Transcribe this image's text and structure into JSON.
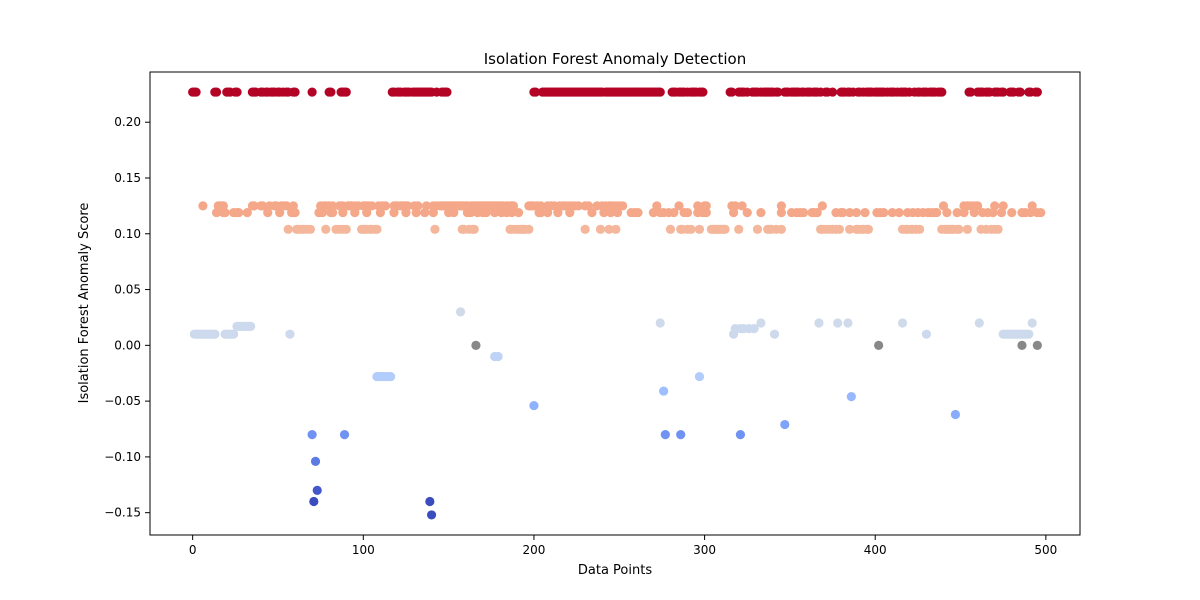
{
  "chart_data": {
    "type": "scatter",
    "title": "Isolation Forest Anomaly Detection",
    "xlabel": "Data Points",
    "ylabel": "Isolation Forest Anomaly Score",
    "xlim": [
      -25,
      520
    ],
    "ylim": [
      -0.17,
      0.245
    ],
    "xticks": [
      0,
      100,
      200,
      300,
      400,
      500
    ],
    "xtick_labels": [
      "0",
      "100",
      "200",
      "300",
      "400",
      "500"
    ],
    "yticks": [
      -0.15,
      -0.1,
      -0.05,
      0.0,
      0.05,
      0.1,
      0.15,
      0.2
    ],
    "ytick_labels": [
      "−0.15",
      "−0.10",
      "−0.05",
      "0.00",
      "0.05",
      "0.10",
      "0.15",
      "0.20"
    ],
    "grid": false,
    "legend": "none",
    "colormap": "coolwarm",
    "level_colors": {
      "0.227": "#b40426",
      "0.125": "#f4a889",
      "0.119": "#f4a889",
      "0.104": "#f4b79b",
      "0.03": "#d0dae9",
      "0.02": "#cfdaea",
      "0.017": "#cdd9ec",
      "0.015": "#cdd9ec",
      "0.01": "#cdd9ec",
      "0.0": "#c4d5f3",
      "-0.01": "#bfd3f6",
      "-0.028": "#b2ccfb",
      "-0.041": "#9ebeff",
      "-0.046": "#97b8ff",
      "-0.054": "#90b2fe",
      "-0.062": "#89acfd",
      "-0.071": "#80a3fa",
      "-0.08": "#7093f3",
      "-0.104": "#5b7ae5",
      "-0.13": "#4358cb",
      "-0.14": "#3b4cc0",
      "-0.152": "#3b4cc0"
    },
    "series": [
      {
        "y": 0.227,
        "x": [
          0,
          1,
          2,
          13,
          14,
          20,
          21,
          22,
          25,
          26,
          35,
          36,
          37,
          40,
          41,
          43,
          44,
          46,
          47,
          48,
          50,
          51,
          53,
          55,
          56,
          59,
          60,
          70,
          80,
          81,
          87,
          88,
          89,
          90,
          117,
          118,
          120,
          121,
          122,
          124,
          125,
          126,
          127,
          129,
          130,
          131,
          132,
          133,
          134,
          135,
          136,
          137,
          138,
          139,
          140,
          143,
          146,
          147,
          148,
          149,
          200,
          201,
          205,
          206,
          207,
          208,
          209,
          210,
          211,
          212,
          213,
          214,
          215,
          216,
          217,
          218,
          219,
          220,
          221,
          222,
          223,
          224,
          225,
          226,
          227,
          228,
          229,
          230,
          231,
          232,
          233,
          234,
          235,
          236,
          237,
          238,
          239,
          240,
          242,
          243,
          244,
          245,
          246,
          247,
          248,
          249,
          250,
          251,
          252,
          253,
          254,
          255,
          256,
          257,
          258,
          259,
          260,
          261,
          262,
          263,
          264,
          265,
          266,
          267,
          268,
          269,
          270,
          271,
          272,
          273,
          274,
          281,
          282,
          283,
          285,
          286,
          287,
          288,
          290,
          292,
          293,
          294,
          295,
          297,
          298,
          299,
          315,
          316,
          320,
          321,
          322,
          323,
          325,
          328,
          329,
          330,
          331,
          333,
          335,
          336,
          337,
          338,
          339,
          340,
          342,
          343,
          347,
          348,
          349,
          351,
          352,
          353,
          354,
          355,
          357,
          358,
          360,
          361,
          362,
          364,
          365,
          366,
          368,
          371,
          372,
          375,
          380,
          381,
          382,
          384,
          385,
          387,
          390,
          391,
          393,
          395,
          396,
          397,
          398,
          400,
          401,
          402,
          403,
          404,
          405,
          407,
          409,
          410,
          411,
          413,
          415,
          416,
          417,
          418,
          420,
          423,
          425,
          426,
          428,
          429,
          430,
          432,
          433,
          434,
          435,
          437,
          438,
          439,
          455,
          456,
          460,
          461,
          462,
          463,
          465,
          466,
          467,
          470,
          471,
          472,
          474,
          475,
          479,
          480,
          481,
          484,
          485,
          490,
          491,
          494,
          495
        ]
      },
      {
        "y": 0.125,
        "x": [
          6,
          15,
          16,
          17,
          18,
          35,
          36,
          40,
          41,
          45,
          48,
          49,
          52,
          53,
          55,
          59,
          75,
          77,
          78,
          80,
          82,
          86,
          87,
          88,
          91,
          92,
          93,
          95,
          97,
          100,
          101,
          102,
          103,
          105,
          109,
          111,
          113,
          118,
          119,
          120,
          122,
          123,
          124,
          125,
          126,
          130,
          132,
          137,
          141,
          143,
          145,
          146,
          147,
          148,
          149,
          150,
          151,
          152,
          153,
          154,
          155,
          156,
          157,
          158,
          159,
          160,
          161,
          163,
          164,
          165,
          166,
          167,
          168,
          169,
          170,
          171,
          172,
          173,
          174,
          175,
          176,
          177,
          178,
          179,
          180,
          181,
          182,
          184,
          186,
          187,
          188,
          197,
          198,
          199,
          200,
          202,
          204,
          208,
          210,
          212,
          215,
          217,
          218,
          220,
          222,
          224,
          226,
          230,
          232,
          237,
          240,
          242,
          244,
          245,
          246,
          248,
          250,
          252,
          272,
          285,
          296,
          300,
          301,
          316,
          318,
          322,
          345,
          369,
          440,
          452,
          454,
          456,
          458,
          460,
          470,
          475,
          492
        ]
      },
      {
        "y": 0.119,
        "x": [
          14,
          18,
          19,
          24,
          26,
          27,
          32,
          44,
          51,
          58,
          60,
          74,
          76,
          81,
          82,
          88,
          95,
          102,
          110,
          118,
          125,
          131,
          136,
          141,
          150,
          153,
          161,
          163,
          167,
          170,
          172,
          177,
          181,
          184,
          187,
          191,
          203,
          204,
          208,
          214,
          221,
          234,
          241,
          245,
          249,
          257,
          259,
          261,
          270,
          274,
          276,
          279,
          282,
          288,
          290,
          296,
          299,
          301,
          317,
          325,
          333,
          345,
          351,
          354,
          356,
          358,
          363,
          364,
          366,
          377,
          380,
          381,
          385,
          389,
          394,
          401,
          403,
          405,
          410,
          414,
          419,
          422,
          425,
          428,
          431,
          433,
          435,
          436,
          442,
          448,
          452,
          458,
          463,
          466,
          469,
          474,
          480,
          486,
          488,
          491,
          495,
          497
        ]
      },
      {
        "y": 0.104,
        "x": [
          56,
          61,
          62,
          64,
          65,
          67,
          69,
          78,
          84,
          86,
          88,
          90,
          99,
          100,
          101,
          102,
          104,
          105,
          107,
          108,
          142,
          158,
          159,
          162,
          164,
          165,
          186,
          187,
          189,
          191,
          192,
          193,
          194,
          195,
          197,
          230,
          239,
          244,
          248,
          280,
          286,
          287,
          290,
          292,
          297,
          304,
          305,
          306,
          307,
          308,
          309,
          310,
          311,
          312,
          320,
          331,
          337,
          338,
          339,
          342,
          345,
          368,
          369,
          371,
          373,
          375,
          377,
          379,
          385,
          389,
          390,
          392,
          393,
          395,
          396,
          416,
          418,
          419,
          421,
          422,
          424,
          426,
          439,
          441,
          442,
          443,
          444,
          445,
          446,
          448,
          449,
          454,
          462,
          465,
          468,
          470,
          472
        ]
      },
      {
        "y": 0.03,
        "x": [
          157
        ]
      },
      {
        "y": 0.02,
        "x": [
          274,
          333,
          367,
          378,
          384,
          416,
          461,
          492
        ]
      },
      {
        "y": 0.017,
        "x": [
          26,
          27,
          28,
          29,
          30,
          31,
          32,
          33,
          34
        ]
      },
      {
        "y": 0.015,
        "x": [
          318,
          321,
          323,
          326,
          329
        ]
      },
      {
        "y": 0.01,
        "x": [
          1,
          2,
          3,
          4,
          5,
          6,
          7,
          8,
          9,
          10,
          11,
          12,
          13,
          19,
          20,
          21,
          22,
          23,
          24,
          57,
          317,
          341,
          430,
          475,
          476,
          477,
          478,
          479,
          480,
          481,
          482,
          483,
          484,
          485,
          486,
          487,
          488,
          489,
          490
        ]
      },
      {
        "y": 0.0,
        "x": [
          166,
          402,
          486,
          495
        ]
      },
      {
        "y": -0.01,
        "x": [
          177,
          179
        ]
      },
      {
        "y": -0.028,
        "x": [
          108,
          109,
          110,
          111,
          112,
          113,
          114,
          115,
          116,
          297
        ]
      },
      {
        "y": -0.041,
        "x": [
          276
        ]
      },
      {
        "y": -0.046,
        "x": [
          386
        ]
      },
      {
        "y": -0.054,
        "x": [
          200
        ]
      },
      {
        "y": -0.062,
        "x": [
          447
        ]
      },
      {
        "y": -0.071,
        "x": [
          347
        ]
      },
      {
        "y": -0.08,
        "x": [
          70,
          89,
          277,
          286,
          321
        ]
      },
      {
        "y": -0.104,
        "x": [
          72
        ]
      },
      {
        "y": -0.13,
        "x": [
          73
        ]
      },
      {
        "y": -0.14,
        "x": [
          71,
          139
        ]
      },
      {
        "y": -0.152,
        "x": [
          140
        ]
      }
    ]
  }
}
